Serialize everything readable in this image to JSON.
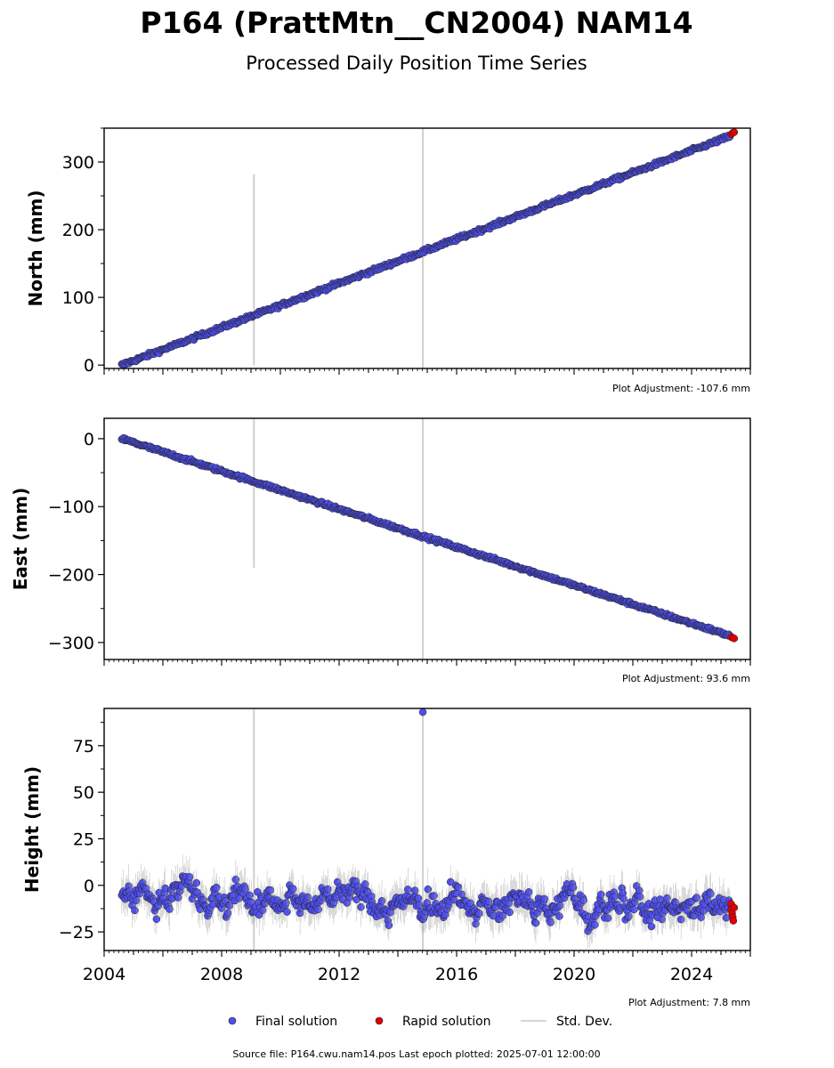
{
  "title": "P164 (PrattMtn__CN2004) NAM14",
  "subtitle": "Processed Daily Position Time Series",
  "footer": "Source file: P164.cwu.nam14.pos  Last epoch plotted: 2025-07-01 12:00:00",
  "colors": {
    "final": "#4f4fef",
    "rapid": "#e00000",
    "edge": "#222222",
    "stddev": "#b0b0b0"
  },
  "legend": {
    "final": "Final solution",
    "rapid": "Rapid solution",
    "stddev": "Std. Dev."
  },
  "chart_data": [
    {
      "type": "scatter",
      "ylabel": "North (mm)",
      "adjustment": "Plot Adjustment: -107.6 mm",
      "xlim": [
        2004.0,
        2026.0
      ],
      "ylim": [
        -5,
        350
      ],
      "yticks": [
        0,
        100,
        200,
        300
      ],
      "ytick_labels": [
        "0",
        "100",
        "200",
        "300"
      ],
      "show_xtick_labels": false,
      "vlines": [
        {
          "x": 2009.1,
          "y": [
            0,
            282
          ]
        },
        {
          "x": 2014.85,
          "y": [
            -5,
            350
          ]
        }
      ],
      "series": [
        {
          "name": "Final solution",
          "kind": "trend",
          "x": [
            2004.6,
            2025.3
          ],
          "y": [
            0,
            338
          ],
          "noise": 2.0,
          "count": 650
        },
        {
          "name": "Rapid solution",
          "kind": "points",
          "x": [
            2025.35,
            2025.4,
            2025.45
          ],
          "y": [
            341,
            343,
            344
          ]
        }
      ]
    },
    {
      "type": "scatter",
      "ylabel": "East (mm)",
      "adjustment": "Plot Adjustment: 93.6 mm",
      "xlim": [
        2004.0,
        2026.0
      ],
      "ylim": [
        -325,
        30
      ],
      "yticks": [
        0,
        -100,
        -200,
        -300
      ],
      "ytick_labels": [
        "0",
        "−100",
        "−200",
        "−300"
      ],
      "show_xtick_labels": false,
      "vlines": [
        {
          "x": 2009.1,
          "y": [
            -190,
            30
          ]
        },
        {
          "x": 2014.85,
          "y": [
            -325,
            30
          ]
        }
      ],
      "series": [
        {
          "name": "Final solution",
          "kind": "trend",
          "x": [
            2004.6,
            2025.3
          ],
          "y": [
            0,
            -290
          ],
          "noise": 1.8,
          "count": 650
        },
        {
          "name": "Rapid solution",
          "kind": "points",
          "x": [
            2025.35,
            2025.4,
            2025.45
          ],
          "y": [
            -292,
            -293,
            -294
          ]
        }
      ]
    },
    {
      "type": "scatter",
      "ylabel": "Height (mm)",
      "adjustment": "Plot Adjustment: 7.8 mm",
      "xlim": [
        2004.0,
        2026.0
      ],
      "ylim": [
        -35,
        95
      ],
      "yticks": [
        -25,
        0,
        25,
        50,
        75
      ],
      "ytick_labels": [
        "−25",
        "0",
        "25",
        "50",
        "75"
      ],
      "show_xtick_labels": true,
      "xticks": [
        2004,
        2008,
        2012,
        2016,
        2020,
        2024
      ],
      "xtick_labels": [
        "2004",
        "2008",
        "2012",
        "2016",
        "2020",
        "2024"
      ],
      "vlines": [
        {
          "x": 2009.1,
          "y": [
            -35,
            95
          ]
        },
        {
          "x": 2014.85,
          "y": [
            -35,
            95
          ]
        }
      ],
      "series": [
        {
          "name": "Final solution",
          "kind": "noise",
          "x": [
            2004.6,
            2025.3
          ],
          "y": [
            -5,
            -12
          ],
          "noise": 9.0,
          "count": 700
        },
        {
          "name": "Final solution outlier",
          "kind": "points",
          "x": [
            2014.85
          ],
          "y": [
            93
          ]
        },
        {
          "name": "Rapid solution",
          "kind": "points",
          "x": [
            2025.35,
            2025.35,
            2025.38,
            2025.4,
            2025.42,
            2025.45
          ],
          "y": [
            -10,
            -13,
            -15,
            -17,
            -19,
            -12
          ]
        }
      ]
    }
  ]
}
